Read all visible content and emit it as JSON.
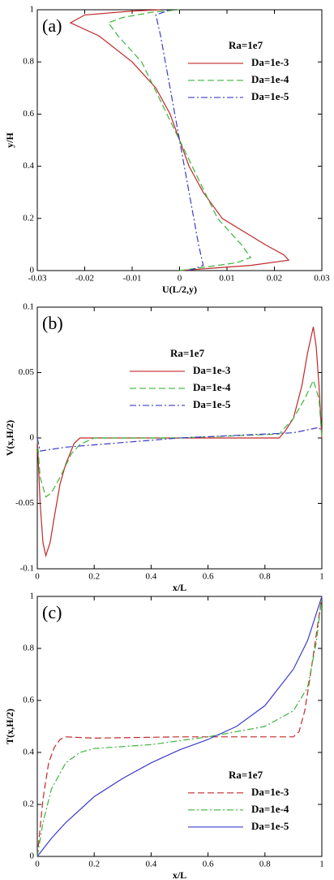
{
  "chart_data": [
    {
      "type": "line",
      "panel_label": "(a)",
      "x_label": "U(L/2,y)",
      "y_label": "y/H",
      "legend_title": "Ra=1e7",
      "legend": "upper right",
      "xlim": [
        -0.03,
        0.03
      ],
      "xticks": [
        -0.03,
        -0.02,
        -0.01,
        0,
        0.01,
        0.02,
        0.03
      ],
      "ylim": [
        0,
        1
      ],
      "yticks": [
        0,
        0.2,
        0.4,
        0.6,
        0.8,
        1
      ],
      "series": [
        {
          "name": "Da=1e-3",
          "color": "#c0282a",
          "dash": "solid",
          "x": [
            0,
            0.015,
            0.023,
            0.022,
            0.018,
            0.009,
            0.005,
            0.002,
            0,
            -0.002,
            -0.005,
            -0.01,
            -0.017,
            -0.023,
            -0.02,
            -0.01,
            -0.004
          ],
          "values": [
            0,
            0.02,
            0.04,
            0.06,
            0.1,
            0.2,
            0.3,
            0.4,
            0.5,
            0.6,
            0.7,
            0.8,
            0.9,
            0.95,
            0.98,
            0.995,
            1
          ]
        },
        {
          "name": "Da=1e-4",
          "color": "#3cb43c",
          "dash": "dashed",
          "x": [
            0,
            0.012,
            0.015,
            0.013,
            0.008,
            0.004,
            0,
            -0.004,
            -0.008,
            -0.013,
            -0.015,
            -0.012,
            -0.006,
            0
          ],
          "values": [
            0,
            0.03,
            0.05,
            0.1,
            0.2,
            0.35,
            0.5,
            0.65,
            0.8,
            0.9,
            0.95,
            0.97,
            0.99,
            1
          ]
        },
        {
          "name": "Da=1e-5",
          "color": "#3c3cc8",
          "dash": "dashdot",
          "x": [
            0.002,
            0.005,
            0.004,
            0,
            -0.004,
            -0.005,
            -0.002
          ],
          "values": [
            0,
            0.02,
            0.1,
            0.5,
            0.9,
            0.98,
            1
          ]
        }
      ]
    },
    {
      "type": "line",
      "panel_label": "(b)",
      "x_label": "x/L",
      "y_label": "V(x,H/2)",
      "legend_title": "Ra=1e7",
      "legend": "upper center",
      "xlim": [
        0,
        1
      ],
      "xticks": [
        0,
        0.2,
        0.4,
        0.6,
        0.8,
        1
      ],
      "ylim": [
        -0.1,
        0.1
      ],
      "yticks": [
        -0.1,
        -0.05,
        0,
        0.05,
        0.1
      ],
      "series": [
        {
          "name": "Da=1e-3",
          "color": "#c0282a",
          "dash": "solid",
          "x": [
            0,
            0.01,
            0.02,
            0.03,
            0.045,
            0.06,
            0.08,
            0.1,
            0.13,
            0.15,
            0.2,
            0.5,
            0.85,
            0.87,
            0.9,
            0.93,
            0.95,
            0.97,
            0.98,
            0.99,
            1
          ],
          "values": [
            0,
            -0.05,
            -0.08,
            -0.09,
            -0.08,
            -0.06,
            -0.035,
            -0.02,
            -0.004,
            0,
            0,
            0,
            0,
            0.005,
            0.015,
            0.04,
            0.065,
            0.085,
            0.07,
            0.04,
            0
          ]
        },
        {
          "name": "Da=1e-4",
          "color": "#3cb43c",
          "dash": "dashed",
          "x": [
            0,
            0.01,
            0.03,
            0.05,
            0.08,
            0.12,
            0.15,
            0.2,
            0.5,
            0.85,
            0.9,
            0.94,
            0.97,
            0.99,
            1
          ],
          "values": [
            0,
            -0.03,
            -0.045,
            -0.042,
            -0.03,
            -0.012,
            -0.005,
            0,
            0,
            0.003,
            0.015,
            0.03,
            0.044,
            0.03,
            0
          ]
        },
        {
          "name": "Da=1e-5",
          "color": "#3c3cc8",
          "dash": "dashdot",
          "x": [
            0,
            0.01,
            0.1,
            0.5,
            0.9,
            0.99,
            1
          ],
          "values": [
            0,
            -0.01,
            -0.007,
            0,
            0.004,
            0.008,
            0.005
          ]
        }
      ]
    },
    {
      "type": "line",
      "panel_label": "(c)",
      "x_label": "x/L",
      "y_label": "T(x,H/2)",
      "legend_title": "Ra=1e7",
      "legend": "lower right",
      "xlim": [
        0,
        1
      ],
      "xticks": [
        0,
        0.2,
        0.4,
        0.6,
        0.8,
        1
      ],
      "ylim": [
        0,
        1
      ],
      "yticks": [
        0,
        0.2,
        0.4,
        0.6,
        0.8,
        1
      ],
      "series": [
        {
          "name": "Da=1e-3",
          "color": "#c0282a",
          "dash": "dashed",
          "x": [
            0,
            0.02,
            0.04,
            0.06,
            0.08,
            0.1,
            0.2,
            0.5,
            0.9,
            0.92,
            0.94,
            0.96,
            0.98,
            1
          ],
          "values": [
            0,
            0.22,
            0.36,
            0.42,
            0.45,
            0.46,
            0.455,
            0.46,
            0.46,
            0.48,
            0.56,
            0.7,
            0.85,
            1
          ]
        },
        {
          "name": "Da=1e-4",
          "color": "#3cb43c",
          "dash": "dashdot",
          "x": [
            0,
            0.02,
            0.05,
            0.1,
            0.15,
            0.2,
            0.4,
            0.6,
            0.8,
            0.9,
            0.95,
            0.98,
            1
          ],
          "values": [
            0,
            0.13,
            0.26,
            0.36,
            0.4,
            0.415,
            0.43,
            0.46,
            0.5,
            0.56,
            0.65,
            0.82,
            1
          ]
        },
        {
          "name": "Da=1e-5",
          "color": "#3c3cc8",
          "dash": "solid",
          "x": [
            0,
            0.05,
            0.1,
            0.2,
            0.3,
            0.4,
            0.5,
            0.6,
            0.7,
            0.8,
            0.9,
            0.95,
            1
          ],
          "values": [
            0,
            0.07,
            0.13,
            0.23,
            0.3,
            0.36,
            0.41,
            0.45,
            0.5,
            0.58,
            0.72,
            0.83,
            1
          ]
        }
      ]
    }
  ]
}
